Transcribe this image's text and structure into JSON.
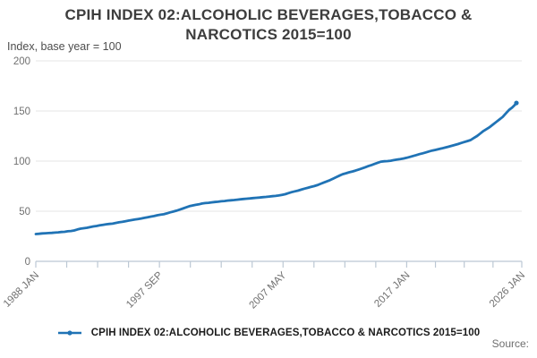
{
  "header": {
    "title": "CPIH INDEX 02:ALCOHOLIC BEVERAGES,TOBACCO & NARCOTICS 2015=100",
    "subtitle": "Index, base year = 100"
  },
  "legend": {
    "label": "CPIH INDEX 02:ALCOHOLIC BEVERAGES,TOBACCO & NARCOTICS 2015=100"
  },
  "footer": {
    "source_label": "Source:"
  },
  "colors": {
    "line": "#2073b5",
    "grid": "#e6e6e6",
    "axis": "#bcc8d4",
    "tick_text": "#707070",
    "title_text": "#3d3d3d"
  },
  "chart_data": {
    "type": "line",
    "title": "CPIH INDEX 02:ALCOHOLIC BEVERAGES,TOBACCO & NARCOTICS 2015=100",
    "subtitle": "Index, base year = 100",
    "xlabel": "",
    "ylabel": "Index, base year = 100",
    "ylim": [
      0,
      200
    ],
    "xlim_years": [
      1988.0,
      2026.0
    ],
    "y_ticks": [
      0,
      50,
      100,
      150,
      200
    ],
    "y_tick_labels": [
      "0",
      "50",
      "100",
      "150",
      "200"
    ],
    "x_tick_labels": [
      "1988 JAN",
      "1997 SEP",
      "2007 MAY",
      "2017 JAN",
      "2026 JAN"
    ],
    "x_ticks": [
      {
        "label": "1988 JAN",
        "year": 1988.0
      },
      {
        "label": "1997 SEP",
        "year": 1997.667
      },
      {
        "label": "2007 MAY",
        "year": 2007.333
      },
      {
        "label": "2017 JAN",
        "year": 2017.0
      },
      {
        "label": "2026 JAN",
        "year": 2026.0
      }
    ],
    "minor_ticks_between_labels": 3,
    "grid": "horizontal",
    "legend_position": "bottom",
    "series": [
      {
        "name": "CPIH INDEX 02:ALCOHOLIC BEVERAGES,TOBACCO & NARCOTICS 2015=100",
        "color": "#2073b5",
        "points": [
          [
            1988.0,
            27.2
          ],
          [
            1988.25,
            27.5
          ],
          [
            1988.5,
            27.9
          ],
          [
            1988.75,
            28.0
          ],
          [
            1989.0,
            28.2
          ],
          [
            1989.25,
            28.4
          ],
          [
            1989.5,
            28.7
          ],
          [
            1989.75,
            28.9
          ],
          [
            1990.0,
            29.3
          ],
          [
            1990.25,
            29.5
          ],
          [
            1990.5,
            30.0
          ],
          [
            1990.75,
            30.3
          ],
          [
            1991.0,
            30.8
          ],
          [
            1991.25,
            31.8
          ],
          [
            1991.5,
            32.6
          ],
          [
            1991.75,
            33.0
          ],
          [
            1992.0,
            33.5
          ],
          [
            1992.25,
            34.2
          ],
          [
            1992.5,
            34.8
          ],
          [
            1992.75,
            35.3
          ],
          [
            1993.0,
            35.9
          ],
          [
            1993.25,
            36.4
          ],
          [
            1993.5,
            37.0
          ],
          [
            1993.75,
            37.3
          ],
          [
            1994.0,
            37.6
          ],
          [
            1994.25,
            38.3
          ],
          [
            1994.5,
            38.9
          ],
          [
            1994.75,
            39.4
          ],
          [
            1995.0,
            40.0
          ],
          [
            1995.25,
            40.6
          ],
          [
            1995.5,
            41.2
          ],
          [
            1995.75,
            41.7
          ],
          [
            1996.0,
            42.2
          ],
          [
            1996.25,
            42.8
          ],
          [
            1996.5,
            43.4
          ],
          [
            1996.75,
            44.0
          ],
          [
            1997.0,
            44.6
          ],
          [
            1997.25,
            45.2
          ],
          [
            1997.5,
            46.0
          ],
          [
            1997.75,
            46.5
          ],
          [
            1998.0,
            47.0
          ],
          [
            1998.25,
            47.9
          ],
          [
            1998.5,
            48.8
          ],
          [
            1998.75,
            49.6
          ],
          [
            1999.0,
            50.5
          ],
          [
            1999.25,
            51.6
          ],
          [
            1999.5,
            52.7
          ],
          [
            1999.75,
            53.8
          ],
          [
            2000.0,
            55.0
          ],
          [
            2000.25,
            55.7
          ],
          [
            2000.5,
            56.3
          ],
          [
            2000.75,
            56.9
          ],
          [
            2001.0,
            57.7
          ],
          [
            2001.25,
            58.1
          ],
          [
            2001.5,
            58.4
          ],
          [
            2001.75,
            58.8
          ],
          [
            2002.0,
            59.2
          ],
          [
            2002.25,
            59.5
          ],
          [
            2002.5,
            59.9
          ],
          [
            2002.75,
            60.2
          ],
          [
            2003.0,
            60.6
          ],
          [
            2003.25,
            60.9
          ],
          [
            2003.5,
            61.2
          ],
          [
            2003.75,
            61.5
          ],
          [
            2004.0,
            61.9
          ],
          [
            2004.25,
            62.2
          ],
          [
            2004.5,
            62.5
          ],
          [
            2004.75,
            62.8
          ],
          [
            2005.0,
            63.1
          ],
          [
            2005.25,
            63.4
          ],
          [
            2005.5,
            63.7
          ],
          [
            2005.75,
            64.0
          ],
          [
            2006.0,
            64.3
          ],
          [
            2006.25,
            64.6
          ],
          [
            2006.5,
            65.0
          ],
          [
            2006.75,
            65.3
          ],
          [
            2007.0,
            65.7
          ],
          [
            2007.25,
            66.3
          ],
          [
            2007.5,
            67.0
          ],
          [
            2007.75,
            68.0
          ],
          [
            2008.0,
            69.0
          ],
          [
            2008.25,
            69.8
          ],
          [
            2008.5,
            70.5
          ],
          [
            2008.75,
            71.5
          ],
          [
            2009.0,
            72.5
          ],
          [
            2009.25,
            73.3
          ],
          [
            2009.5,
            74.2
          ],
          [
            2009.75,
            75.0
          ],
          [
            2010.0,
            76.0
          ],
          [
            2010.25,
            77.2
          ],
          [
            2010.5,
            78.5
          ],
          [
            2010.75,
            79.7
          ],
          [
            2011.0,
            81.0
          ],
          [
            2011.25,
            82.5
          ],
          [
            2011.5,
            84.0
          ],
          [
            2011.75,
            85.5
          ],
          [
            2012.0,
            87.0
          ],
          [
            2012.25,
            87.9
          ],
          [
            2012.5,
            88.8
          ],
          [
            2012.75,
            89.6
          ],
          [
            2013.0,
            90.5
          ],
          [
            2013.25,
            91.6
          ],
          [
            2013.5,
            92.7
          ],
          [
            2013.75,
            93.8
          ],
          [
            2014.0,
            95.0
          ],
          [
            2014.25,
            96.1
          ],
          [
            2014.5,
            97.2
          ],
          [
            2014.75,
            98.4
          ],
          [
            2015.0,
            99.5
          ],
          [
            2015.25,
            99.8
          ],
          [
            2015.5,
            100.0
          ],
          [
            2015.75,
            100.4
          ],
          [
            2016.0,
            101.0
          ],
          [
            2016.25,
            101.5
          ],
          [
            2016.5,
            102.0
          ],
          [
            2016.75,
            102.6
          ],
          [
            2017.0,
            103.3
          ],
          [
            2017.25,
            104.2
          ],
          [
            2017.5,
            105.1
          ],
          [
            2017.75,
            106.0
          ],
          [
            2018.0,
            107.0
          ],
          [
            2018.25,
            107.8
          ],
          [
            2018.5,
            108.7
          ],
          [
            2018.75,
            109.6
          ],
          [
            2019.0,
            110.5
          ],
          [
            2019.25,
            111.2
          ],
          [
            2019.5,
            112.0
          ],
          [
            2019.75,
            112.7
          ],
          [
            2020.0,
            113.5
          ],
          [
            2020.25,
            114.3
          ],
          [
            2020.5,
            115.2
          ],
          [
            2020.75,
            116.1
          ],
          [
            2021.0,
            117.0
          ],
          [
            2021.25,
            118.0
          ],
          [
            2021.5,
            119.0
          ],
          [
            2021.75,
            120.0
          ],
          [
            2022.0,
            121.0
          ],
          [
            2022.25,
            123.0
          ],
          [
            2022.5,
            125.0
          ],
          [
            2022.75,
            127.5
          ],
          [
            2023.0,
            130.0
          ],
          [
            2023.25,
            132.0
          ],
          [
            2023.5,
            134.0
          ],
          [
            2023.75,
            136.5
          ],
          [
            2024.0,
            139.0
          ],
          [
            2024.25,
            141.5
          ],
          [
            2024.5,
            144.0
          ],
          [
            2024.75,
            147.5
          ],
          [
            2025.0,
            151.0
          ],
          [
            2025.25,
            153.5
          ],
          [
            2025.42,
            155.5
          ],
          [
            2025.58,
            158.0
          ]
        ]
      }
    ]
  }
}
